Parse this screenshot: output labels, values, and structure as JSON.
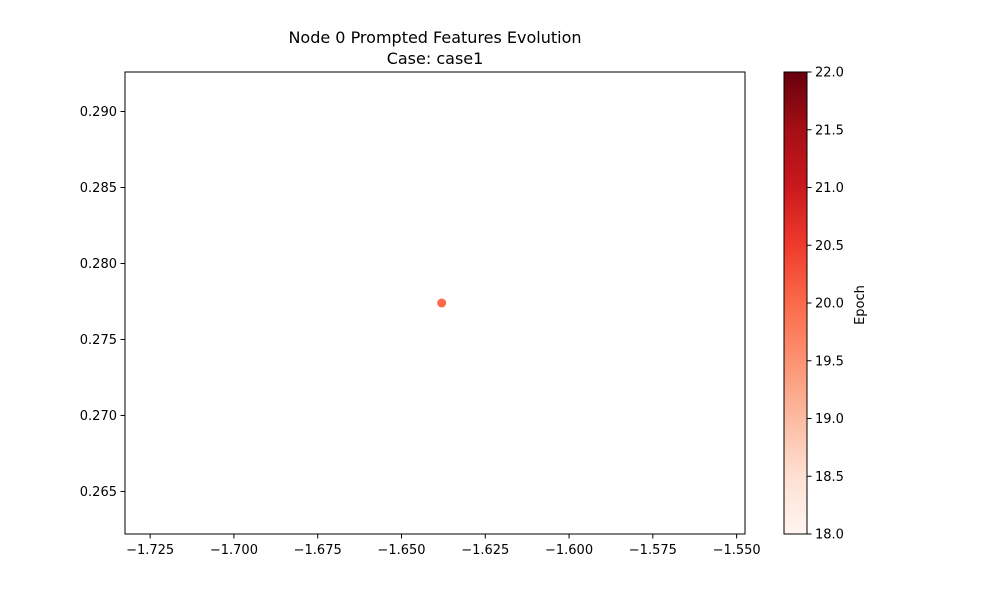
{
  "chart_data": {
    "type": "scatter",
    "title": "Node 0 Prompted Features Evolution",
    "subtitle": "Case: case1",
    "xlabel": "",
    "ylabel": "",
    "xlim": [
      -1.7325,
      -1.5475
    ],
    "ylim": [
      0.2622,
      0.2926
    ],
    "xticks": [
      -1.725,
      -1.7,
      -1.675,
      -1.65,
      -1.625,
      -1.6,
      -1.575,
      -1.55
    ],
    "xtick_labels": [
      "−1.725",
      "−1.700",
      "−1.675",
      "−1.650",
      "−1.625",
      "−1.600",
      "−1.575",
      "−1.550"
    ],
    "yticks": [
      0.265,
      0.27,
      0.275,
      0.28,
      0.285,
      0.29
    ],
    "ytick_labels": [
      "0.265",
      "0.270",
      "0.275",
      "0.280",
      "0.285",
      "0.290"
    ],
    "points": [
      {
        "x": -1.638,
        "y": 0.2774,
        "epoch": 20
      }
    ],
    "grid": false,
    "colorbar": {
      "label": "Epoch",
      "colormap": "Reds",
      "min": 18.0,
      "max": 22.0,
      "ticks": [
        18.0,
        18.5,
        19.0,
        19.5,
        20.0,
        20.5,
        21.0,
        21.5,
        22.0
      ],
      "tick_labels": [
        "18.0",
        "18.5",
        "19.0",
        "19.5",
        "20.0",
        "20.5",
        "21.0",
        "21.5",
        "22.0"
      ],
      "colors": [
        "#fff5f0",
        "#fee0d2",
        "#fcbba1",
        "#fc9272",
        "#fb6a4a",
        "#ef3b2c",
        "#cb181d",
        "#a50f15",
        "#67000d"
      ]
    }
  }
}
